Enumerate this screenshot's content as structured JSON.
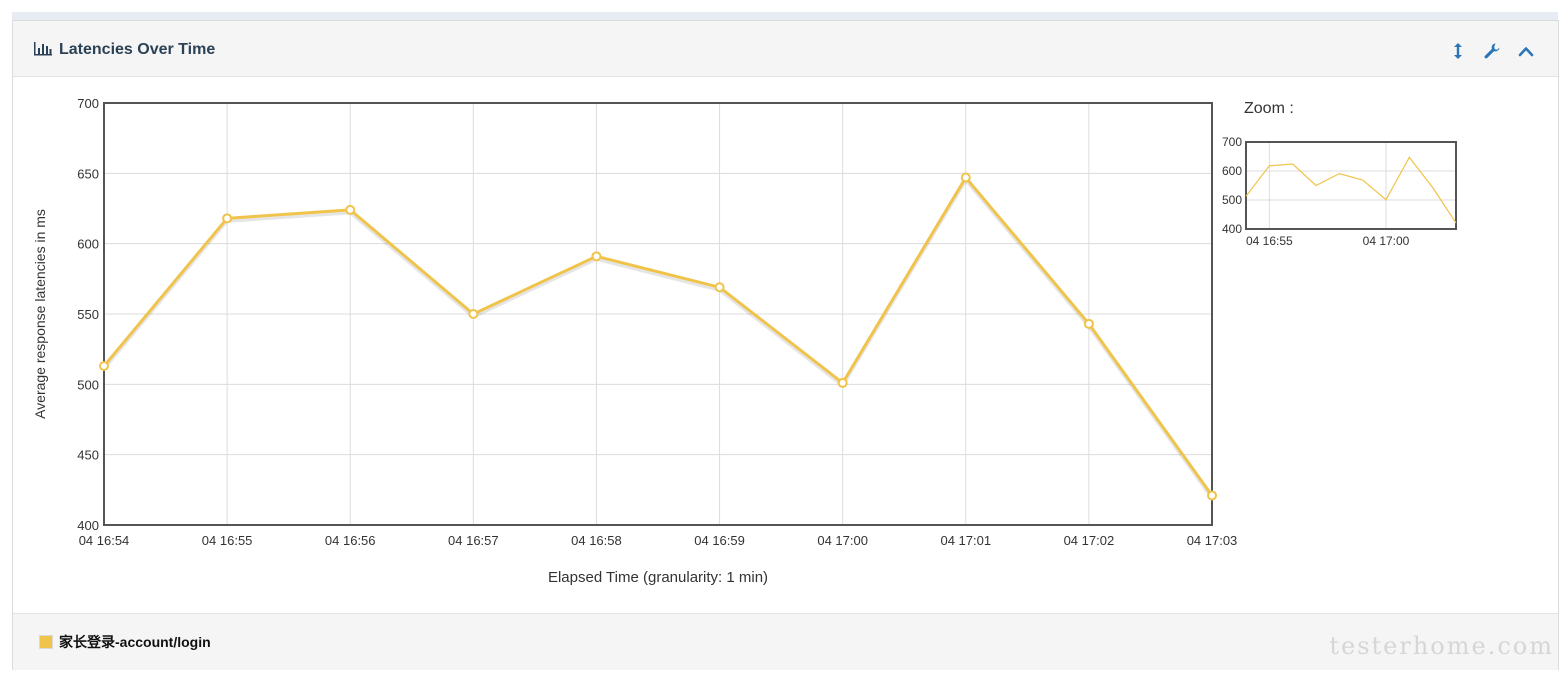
{
  "panel": {
    "title": "Latencies Over Time",
    "icons": [
      "bar-chart-icon",
      "resize-vertical-icon",
      "wrench-icon",
      "chevron-up-icon"
    ]
  },
  "chart_data": {
    "type": "line",
    "x": [
      "04 16:54",
      "04 16:55",
      "04 16:56",
      "04 16:57",
      "04 16:58",
      "04 16:59",
      "04 17:00",
      "04 17:01",
      "04 17:02",
      "04 17:03"
    ],
    "series": [
      {
        "name": "家长登录-account/login",
        "values": [
          513,
          618,
          624,
          550,
          591,
          569,
          501,
          647,
          543,
          421
        ],
        "color": "#f0c34b"
      }
    ],
    "xlabel": "Elapsed Time (granularity: 1 min)",
    "ylabel": "Average response latencies in ms",
    "ylim": [
      400,
      700
    ],
    "yticks": [
      400,
      450,
      500,
      550,
      600,
      650,
      700
    ],
    "grid": true
  },
  "zoom": {
    "label": "Zoom :",
    "yticks": [
      400,
      500,
      600,
      700
    ],
    "xticks": [
      "04 16:55",
      "04 17:00"
    ]
  },
  "legend": {
    "items": [
      {
        "label": "家长登录-account/login",
        "color": "#f0c34b"
      }
    ]
  },
  "watermark": "testerhome.com"
}
